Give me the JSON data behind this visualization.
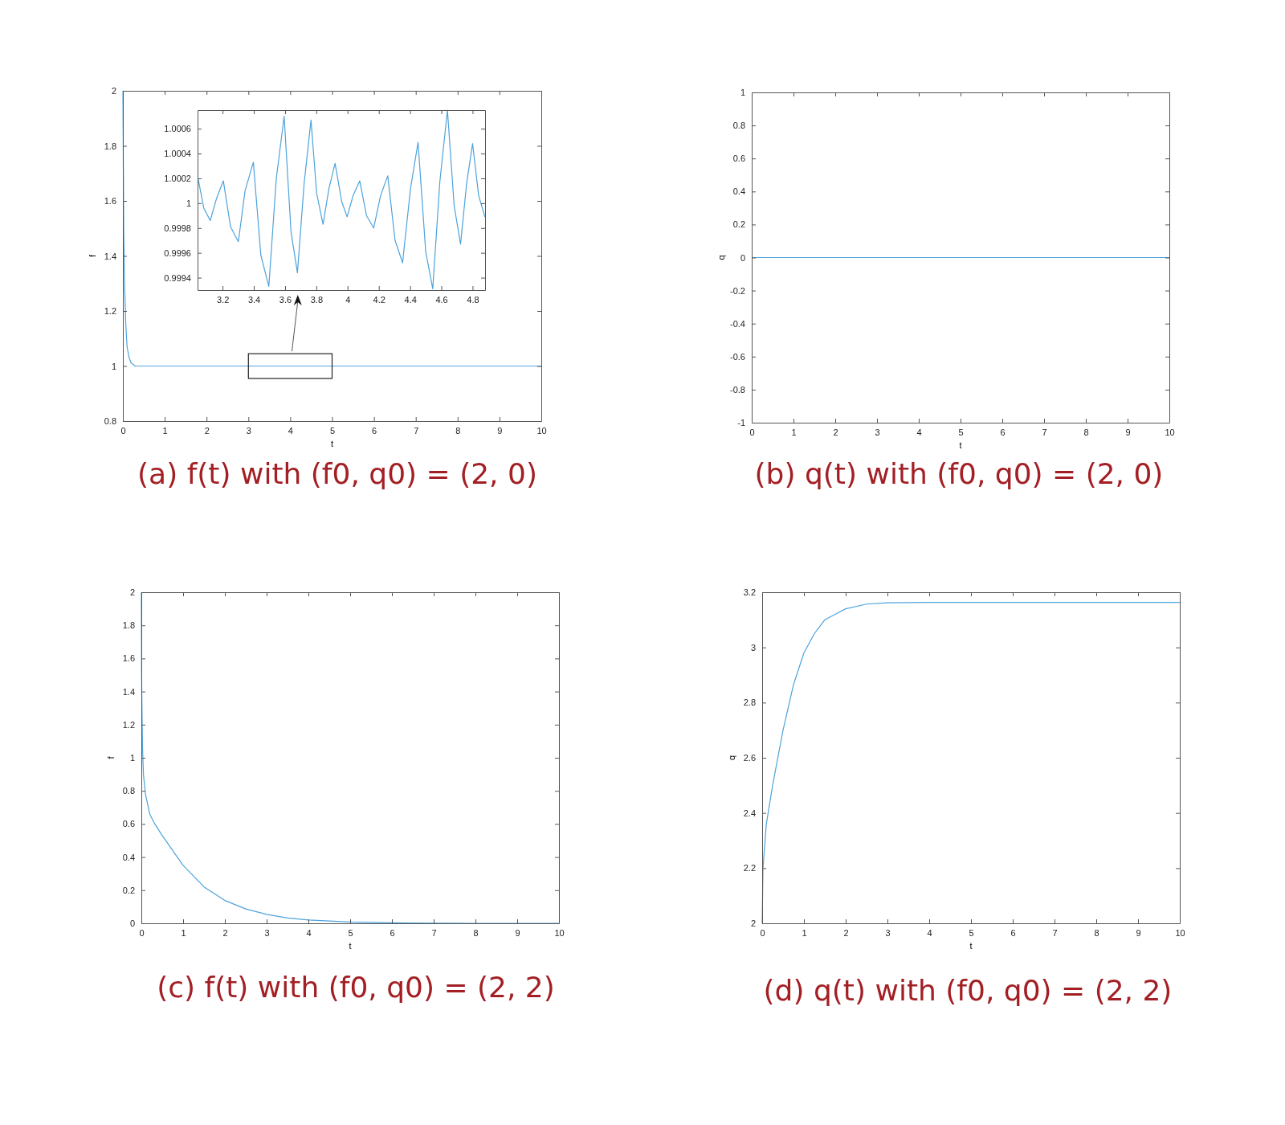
{
  "chart_data": [
    {
      "type": "line",
      "title": "(a) f(t) with (f0, q0) = (2, 0)",
      "xlabel": "t",
      "ylabel": "f",
      "xlim": [
        0,
        10
      ],
      "ylim": [
        0.8,
        2
      ],
      "xticks": [
        0,
        1,
        2,
        3,
        4,
        5,
        6,
        7,
        8,
        9,
        10
      ],
      "yticks": [
        0.8,
        1,
        1.2,
        1.4,
        1.6,
        1.8,
        2
      ],
      "series": [
        {
          "color": "#4da3dc",
          "x": [
            0,
            0.02,
            0.04,
            0.07,
            0.1,
            0.15,
            0.2,
            0.3,
            0.5,
            1,
            2,
            3,
            4,
            5,
            6,
            7,
            8,
            9,
            10
          ],
          "values": [
            2,
            1.5,
            1.3,
            1.15,
            1.07,
            1.03,
            1.01,
            1.0,
            1.0,
            1.0,
            1.0,
            1.0,
            1.0,
            1.0,
            1.0,
            1.0,
            1.0,
            1.0,
            1.0
          ]
        }
      ]
    },
    {
      "type": "line",
      "xlim": [
        3.04,
        4.88
      ],
      "ylim": [
        0.9993,
        1.00075
      ],
      "xticks": [
        3.2,
        3.4,
        3.6,
        3.8,
        4,
        4.2,
        4.4,
        4.6,
        4.8
      ],
      "yticks": [
        0.9994,
        0.9996,
        0.9998,
        1,
        1.0002,
        1.0004,
        1.0006
      ],
      "series": [
        {
          "color": "#4da3dc",
          "x": [
            3.043,
            3.08,
            3.121,
            3.162,
            3.205,
            3.251,
            3.301,
            3.344,
            3.397,
            3.445,
            3.496,
            3.544,
            3.594,
            3.638,
            3.679,
            3.722,
            3.766,
            3.802,
            3.843,
            3.881,
            3.92,
            3.963,
            3.997,
            4.035,
            4.078,
            4.121,
            4.167,
            4.211,
            4.257,
            4.304,
            4.352,
            4.403,
            4.451,
            4.5,
            4.545,
            4.591,
            4.639,
            4.682,
            4.723,
            4.762,
            4.8,
            4.839,
            4.879
          ],
          "values": [
            1.0002,
            0.99996,
            0.99986,
            1.00004,
            1.00018,
            0.99981,
            0.99969,
            1.0001,
            1.00033,
            0.99958,
            0.99933,
            1.0002,
            1.0007,
            0.99977,
            0.99944,
            1.00016,
            1.00067,
            1.00008,
            0.99983,
            1.00012,
            1.00032,
            1.00001,
            0.99989,
            1.00006,
            1.00018,
            0.9999,
            0.9998,
            1.00006,
            1.00022,
            0.9997,
            0.99952,
            1.00012,
            1.00049,
            0.99961,
            0.99931,
            1.00018,
            1.00075,
            0.99998,
            0.99967,
            1.00016,
            1.00048,
            1.00006,
            0.99989
          ]
        }
      ]
    },
    {
      "type": "line",
      "title": "(b) q(t) with (f0, q0) = (2, 0)",
      "xlabel": "t",
      "ylabel": "q",
      "xlim": [
        0,
        10
      ],
      "ylim": [
        -1,
        1
      ],
      "xticks": [
        0,
        1,
        2,
        3,
        4,
        5,
        6,
        7,
        8,
        9,
        10
      ],
      "yticks": [
        -1,
        -0.8,
        -0.6,
        -0.4,
        -0.2,
        0,
        0.2,
        0.4,
        0.6,
        0.8,
        1
      ],
      "series": [
        {
          "color": "#4da3dc",
          "x": [
            0,
            10
          ],
          "values": [
            0,
            0
          ]
        }
      ]
    },
    {
      "type": "line",
      "title": "(c) f(t) with (f0, q0) = (2, 2)",
      "xlabel": "t",
      "ylabel": "f",
      "xlim": [
        0,
        10
      ],
      "ylim": [
        0,
        2
      ],
      "xticks": [
        0,
        1,
        2,
        3,
        4,
        5,
        6,
        7,
        8,
        9,
        10
      ],
      "yticks": [
        0,
        0.2,
        0.4,
        0.6,
        0.8,
        1,
        1.2,
        1.4,
        1.6,
        1.8,
        2
      ],
      "series": [
        {
          "color": "#4da3dc",
          "x": [
            0,
            0.005,
            0.01,
            0.02,
            0.03,
            0.05,
            0.1,
            0.2,
            0.3,
            0.5,
            0.75,
            1,
            1.5,
            2,
            2.5,
            3,
            3.5,
            4,
            5,
            6,
            7,
            8,
            10
          ],
          "values": [
            2,
            1.6,
            1.4,
            1.2,
            1.05,
            0.9,
            0.78,
            0.66,
            0.61,
            0.53,
            0.44,
            0.35,
            0.22,
            0.138,
            0.087,
            0.054,
            0.032,
            0.02,
            0.008,
            0.003,
            0.001,
            0,
            0
          ]
        }
      ]
    },
    {
      "type": "line",
      "title": "(d) q(t) with (f0, q0) = (2, 2)",
      "xlabel": "t",
      "ylabel": "q",
      "xlim": [
        0,
        10
      ],
      "ylim": [
        2,
        3.2
      ],
      "xticks": [
        0,
        1,
        2,
        3,
        4,
        5,
        6,
        7,
        8,
        9,
        10
      ],
      "yticks": [
        2,
        2.2,
        2.4,
        2.6,
        2.8,
        3,
        3.2
      ],
      "series": [
        {
          "color": "#4da3dc",
          "x": [
            0,
            0.02,
            0.1,
            0.25,
            0.5,
            0.75,
            1,
            1.25,
            1.5,
            2,
            2.5,
            3,
            4,
            5,
            10
          ],
          "values": [
            2,
            2.2,
            2.36,
            2.5,
            2.7,
            2.865,
            2.98,
            3.05,
            3.1,
            3.14,
            3.157,
            3.162,
            3.163,
            3.163,
            3.163
          ]
        }
      ]
    }
  ]
}
